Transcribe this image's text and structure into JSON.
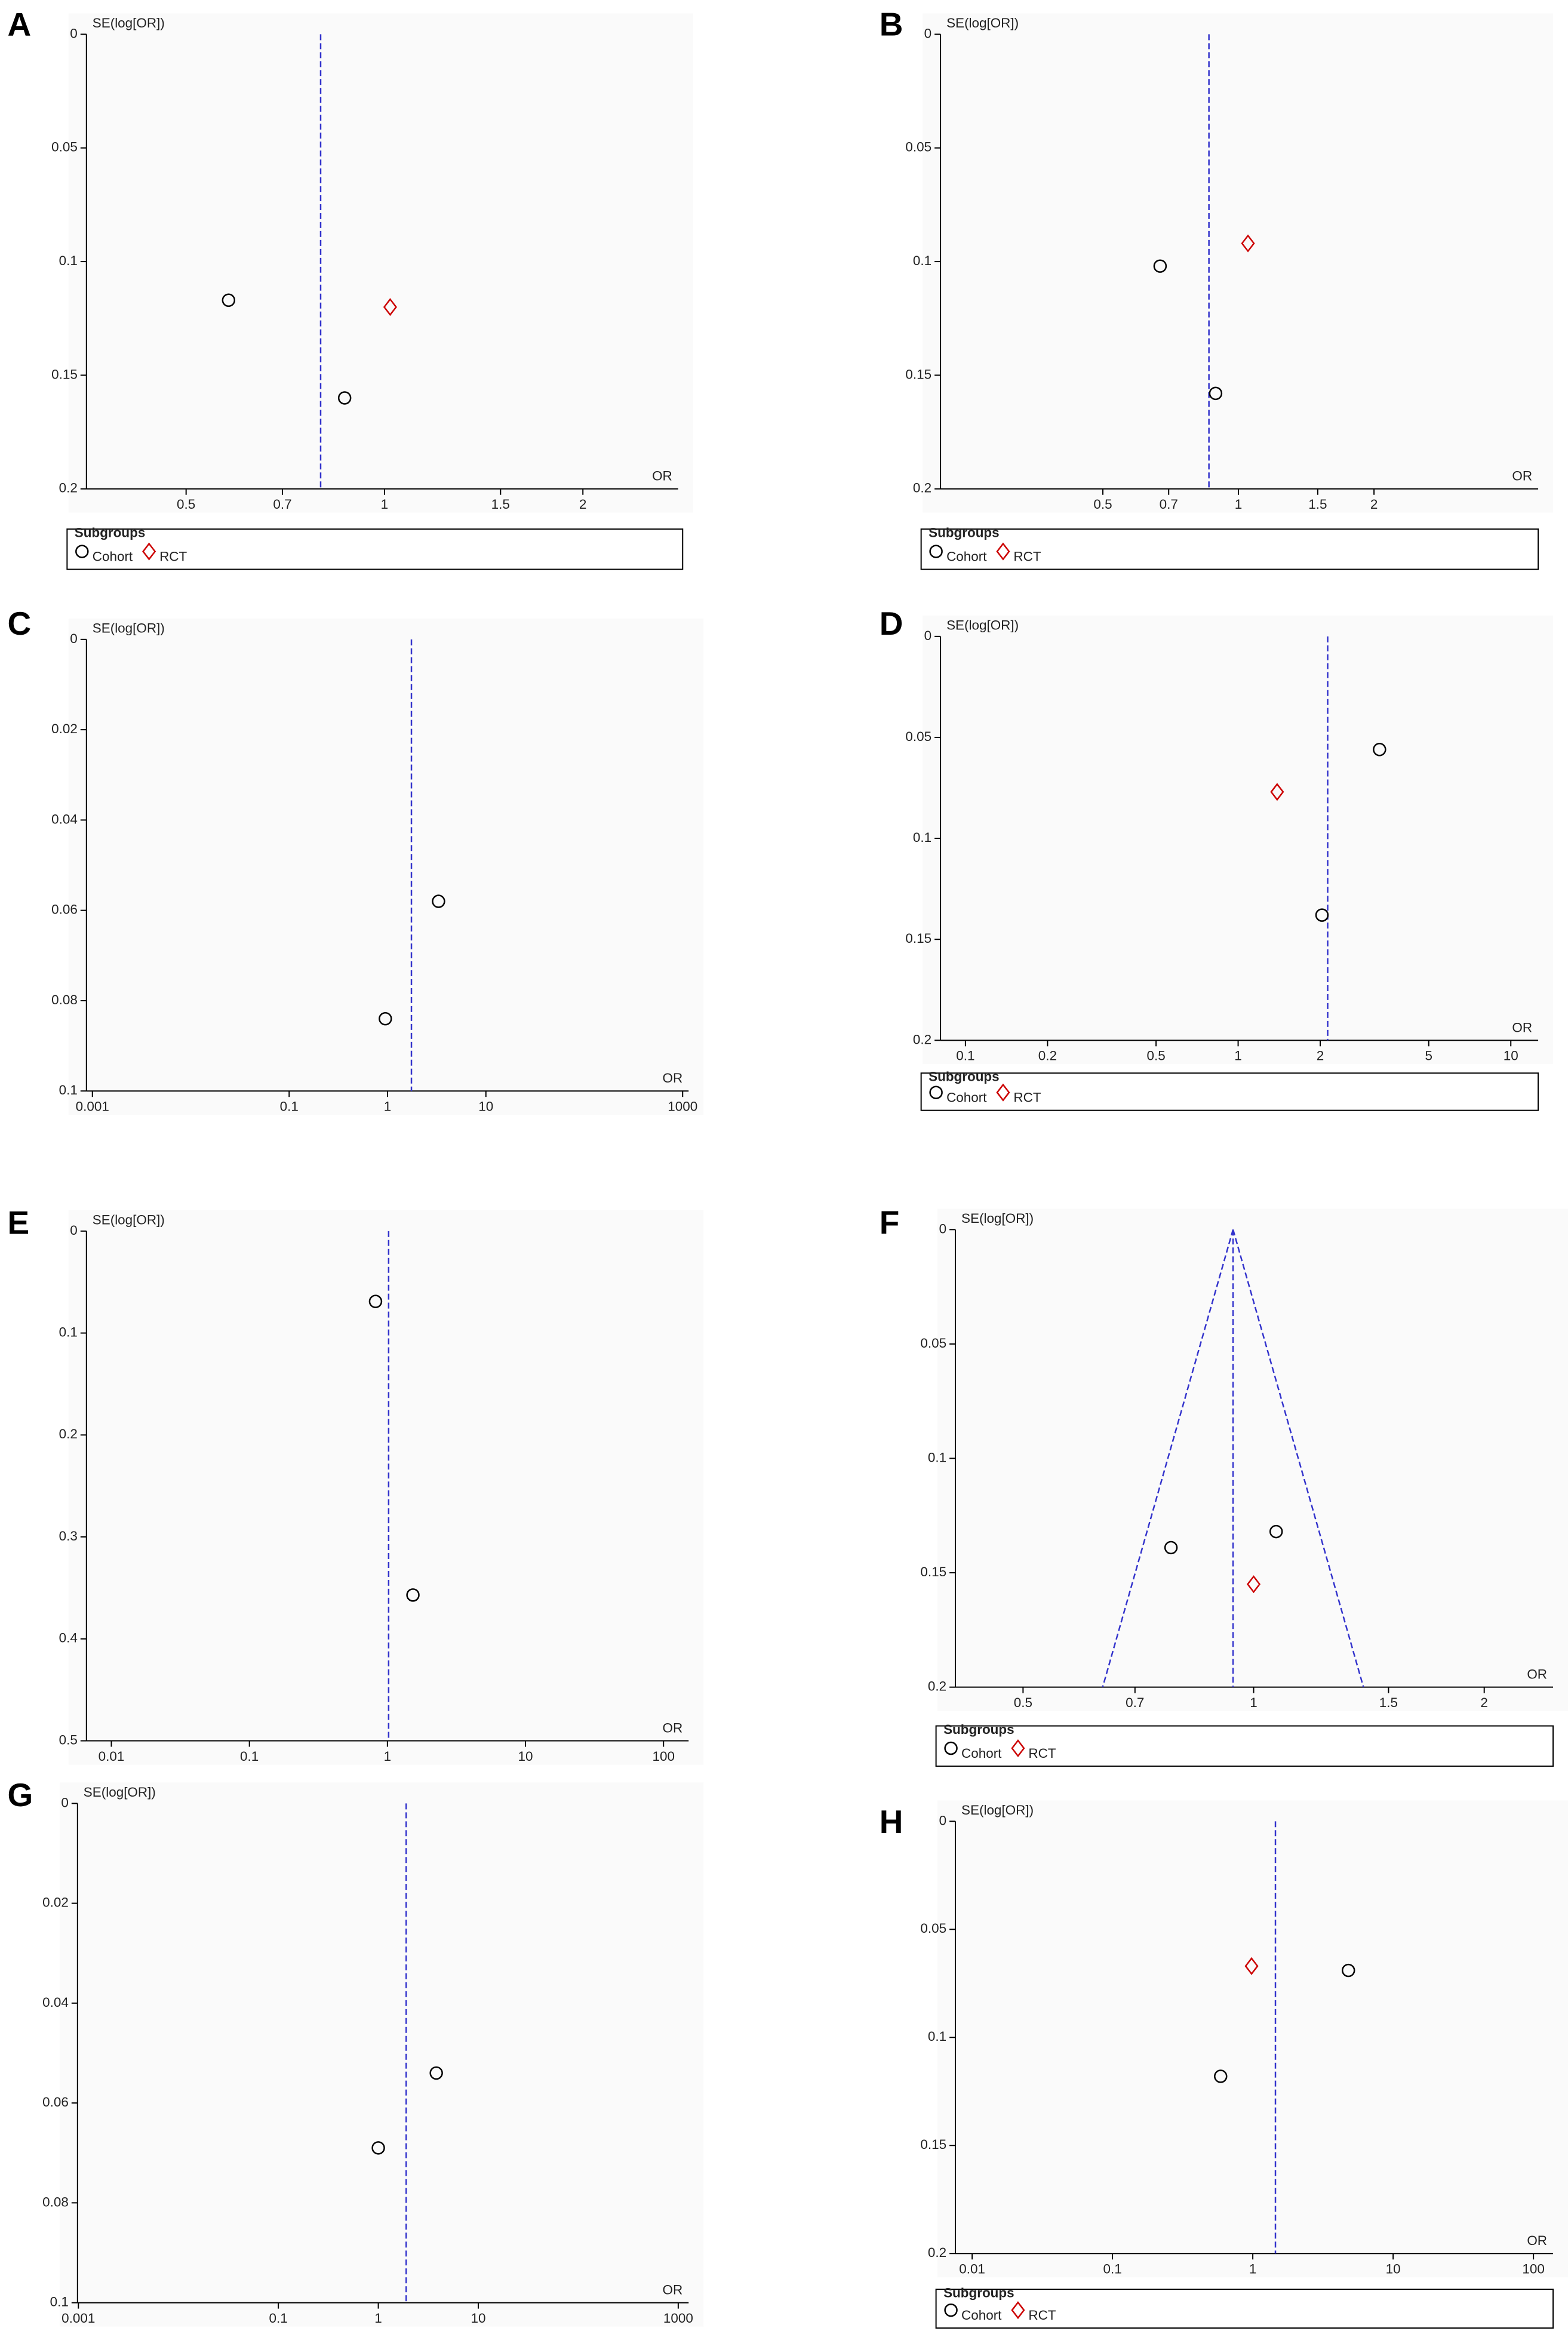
{
  "chart_data": [
    {
      "type": "scatter",
      "panel": "A",
      "y_label": "SE(log[OR])",
      "x_label": "OR",
      "xscale": "log",
      "y_inverted": true,
      "xlim": [
        0.353,
        2.79
      ],
      "ylim": [
        0,
        0.2
      ],
      "xticks": [
        0.5,
        0.7,
        1,
        1.5,
        2
      ],
      "yticks": [
        0,
        0.05,
        0.1,
        0.15,
        0.2
      ],
      "pooled_or": 0.8,
      "pooled_color": "#3333cc",
      "legend_title": "Subgroups",
      "series": [
        {
          "name": "Cohort",
          "marker": "circle",
          "color": "#000000",
          "x": [
            0.58,
            0.87
          ],
          "values": [
            0.117,
            0.16
          ]
        },
        {
          "name": "RCT",
          "marker": "diamond",
          "color": "#cc0000",
          "x": [
            1.02
          ],
          "values": [
            0.12
          ]
        }
      ]
    },
    {
      "type": "scatter",
      "panel": "B",
      "y_label": "SE(log[OR])",
      "x_label": "OR",
      "xscale": "log",
      "y_inverted": true,
      "xlim": [
        0.218,
        4.63
      ],
      "ylim": [
        0,
        0.2
      ],
      "xticks": [
        0.5,
        0.7,
        1,
        1.5,
        2
      ],
      "yticks": [
        0,
        0.05,
        0.1,
        0.15,
        0.2
      ],
      "pooled_or": 0.86,
      "pooled_color": "#3333cc",
      "legend_title": "Subgroups",
      "series": [
        {
          "name": "Cohort",
          "marker": "circle",
          "color": "#000000",
          "x": [
            0.67,
            0.89
          ],
          "values": [
            0.102,
            0.158
          ]
        },
        {
          "name": "RCT",
          "marker": "diamond",
          "color": "#cc0000",
          "x": [
            1.05
          ],
          "values": [
            0.092
          ]
        }
      ]
    },
    {
      "type": "scatter",
      "panel": "C",
      "y_label": "SE(log[OR])",
      "x_label": "OR",
      "xscale": "log",
      "y_inverted": true,
      "xlim": [
        0.00087,
        1150
      ],
      "ylim": [
        0,
        0.1
      ],
      "xticks": [
        0.001,
        0.1,
        1,
        10,
        1000
      ],
      "yticks": [
        0,
        0.02,
        0.04,
        0.06,
        0.08,
        0.1
      ],
      "pooled_or": 1.75,
      "pooled_color": "#3333cc",
      "series": [
        {
          "marker": "circle",
          "color": "#000000",
          "x": [
            3.3,
            0.95
          ],
          "values": [
            0.058,
            0.084
          ]
        }
      ]
    },
    {
      "type": "scatter",
      "panel": "D",
      "y_label": "SE(log[OR])",
      "x_label": "OR",
      "xscale": "log",
      "y_inverted": true,
      "xlim": [
        0.081,
        12.6
      ],
      "ylim": [
        0,
        0.2
      ],
      "xticks": [
        0.1,
        0.2,
        0.5,
        1,
        2,
        5,
        10
      ],
      "yticks": [
        0,
        0.05,
        0.1,
        0.15,
        0.2
      ],
      "pooled_or": 2.13,
      "pooled_color": "#3333cc",
      "legend_title": "Subgroups",
      "series": [
        {
          "name": "Cohort",
          "marker": "circle",
          "color": "#000000",
          "x": [
            3.3,
            2.03
          ],
          "values": [
            0.056,
            0.138
          ]
        },
        {
          "name": "RCT",
          "marker": "diamond",
          "color": "#cc0000",
          "x": [
            1.39
          ],
          "values": [
            0.077
          ]
        }
      ]
    },
    {
      "type": "scatter",
      "panel": "E",
      "y_label": "SE(log[OR])",
      "x_label": "OR",
      "xscale": "log",
      "y_inverted": true,
      "xlim": [
        0.0066,
        152
      ],
      "ylim": [
        0,
        0.5
      ],
      "xticks": [
        0.01,
        0.1,
        1,
        10,
        100
      ],
      "yticks": [
        0,
        0.1,
        0.2,
        0.3,
        0.4,
        0.5
      ],
      "pooled_or": 1.02,
      "pooled_color": "#3333cc",
      "series": [
        {
          "marker": "circle",
          "color": "#000000",
          "x": [
            0.82,
            1.53
          ],
          "values": [
            0.069,
            0.357
          ]
        }
      ]
    },
    {
      "type": "scatter",
      "panel": "F",
      "y_label": "SE(log[OR])",
      "x_label": "OR",
      "xscale": "log",
      "y_inverted": true,
      "xlim": [
        0.408,
        2.46
      ],
      "ylim": [
        0,
        0.2
      ],
      "xticks": [
        0.5,
        0.7,
        1,
        1.5,
        2
      ],
      "yticks": [
        0,
        0.05,
        0.1,
        0.15,
        0.2
      ],
      "pooled_or": 0.94,
      "pooled_color": "#3333cc",
      "funnel": true,
      "legend_title": "Subgroups",
      "series": [
        {
          "name": "Cohort",
          "marker": "circle",
          "color": "#000000",
          "x": [
            0.78,
            1.07
          ],
          "values": [
            0.139,
            0.132
          ]
        },
        {
          "name": "RCT",
          "marker": "diamond",
          "color": "#cc0000",
          "x": [
            1.0
          ],
          "values": [
            0.155
          ]
        }
      ]
    },
    {
      "type": "scatter",
      "panel": "G",
      "y_label": "SE(log[OR])",
      "x_label": "OR",
      "xscale": "log",
      "y_inverted": true,
      "xlim": [
        0.00098,
        1270
      ],
      "ylim": [
        0,
        0.1
      ],
      "xticks": [
        0.001,
        0.1,
        1,
        10,
        1000
      ],
      "yticks": [
        0,
        0.02,
        0.04,
        0.06,
        0.08,
        0.1
      ],
      "pooled_or": 1.9,
      "pooled_color": "#3333cc",
      "series": [
        {
          "marker": "circle",
          "color": "#000000",
          "x": [
            3.8,
            1.0
          ],
          "values": [
            0.054,
            0.069
          ]
        }
      ]
    },
    {
      "type": "scatter",
      "panel": "H",
      "y_label": "SE(log[OR])",
      "x_label": "OR",
      "xscale": "log",
      "y_inverted": true,
      "xlim": [
        0.0076,
        138
      ],
      "ylim": [
        0,
        0.2
      ],
      "xticks": [
        0.01,
        0.1,
        1,
        10,
        100
      ],
      "yticks": [
        0,
        0.05,
        0.1,
        0.15,
        0.2
      ],
      "pooled_or": 1.45,
      "pooled_color": "#3333cc",
      "legend_title": "Subgroups",
      "series": [
        {
          "name": "Cohort",
          "marker": "circle",
          "color": "#000000",
          "x": [
            4.8,
            0.59
          ],
          "values": [
            0.069,
            0.118
          ]
        },
        {
          "name": "RCT",
          "marker": "diamond",
          "color": "#cc0000",
          "x": [
            0.98
          ],
          "values": [
            0.067
          ]
        }
      ]
    }
  ]
}
